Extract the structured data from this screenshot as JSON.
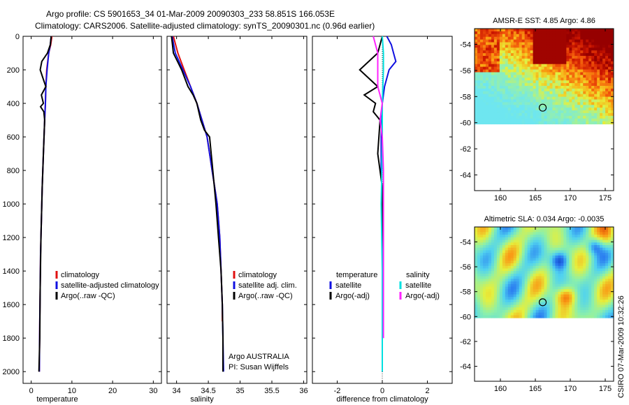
{
  "title_line1": "Argo profile: CS 5901653_34 01-Mar-2009 20090303_233 58.851S 166.053E",
  "title_line2": "Climatology: CARS2006. Satellite-adjusted climatology: synTS_20090301.nc (0.96d earlier)",
  "side_stamp": "CSIRO 07-Mar-2009 10:32:26",
  "colors": {
    "climatology": "#e01010",
    "satellite": "#1010e0",
    "argo": "#000000",
    "cyan": "#00e0e0",
    "magenta": "#ff22ff"
  },
  "chart_data": [
    {
      "type": "line",
      "id": "temperature",
      "xlabel": "temperature",
      "ylabel": "",
      "xlim": [
        -2,
        32
      ],
      "ylim": [
        2070,
        0
      ],
      "xticks": [
        0,
        10,
        20,
        30
      ],
      "yticks": [
        0,
        200,
        400,
        600,
        800,
        1000,
        1200,
        1400,
        1600,
        1800,
        2000
      ],
      "legend": {
        "placement": "lower-right",
        "entries": [
          "climatology",
          "satellite-adjusted climatology",
          "Argo(..raw -QC)"
        ]
      },
      "series": [
        {
          "name": "climatology",
          "color": "#e01010",
          "x": [
            5.1,
            4.8,
            4.3,
            3.8,
            3.6,
            3.5,
            3.3,
            3.0,
            2.7,
            2.5,
            2.3,
            2.2,
            2.1,
            2.0
          ],
          "y": [
            0,
            50,
            100,
            200,
            300,
            400,
            500,
            700,
            900,
            1100,
            1300,
            1500,
            1700,
            2000
          ]
        },
        {
          "name": "satellite-adjusted climatology",
          "color": "#1010e0",
          "x": [
            4.9,
            4.7,
            4.3,
            3.9,
            3.6,
            3.5,
            3.3,
            3.0,
            2.7,
            2.5,
            2.3,
            2.2,
            2.1,
            2.0
          ],
          "y": [
            0,
            50,
            100,
            200,
            300,
            400,
            500,
            700,
            900,
            1100,
            1300,
            1500,
            1700,
            2000
          ]
        },
        {
          "name": "Argo(..raw -QC)",
          "color": "#000000",
          "x": [
            4.9,
            4.7,
            4.0,
            2.6,
            2.2,
            2.9,
            3.6,
            2.5,
            3.0,
            2.3,
            3.1,
            3.3,
            3.0,
            2.7,
            2.4,
            2.2,
            2.1,
            1.9
          ],
          "y": [
            0,
            50,
            100,
            150,
            200,
            250,
            300,
            350,
            400,
            420,
            450,
            500,
            700,
            900,
            1200,
            1500,
            1800,
            2000
          ]
        }
      ]
    },
    {
      "type": "line",
      "id": "salinity",
      "xlabel": "salinity",
      "ylabel": "",
      "xlim": [
        33.85,
        36.05
      ],
      "ylim": [
        2070,
        0
      ],
      "xticks": [
        34,
        34.5,
        35,
        35.5,
        36
      ],
      "legend": {
        "placement": "lower-right",
        "entries": [
          "climatology",
          "satellite adj. clim.",
          "Argo(..raw -QC)"
        ]
      },
      "annotations": [
        "Argo AUSTRALIA",
        "PI: Susan Wijffels"
      ],
      "series": [
        {
          "name": "climatology",
          "color": "#e01010",
          "x": [
            33.95,
            34.02,
            34.12,
            34.22,
            34.32,
            34.4,
            34.48,
            34.56,
            34.6,
            34.64,
            34.68,
            34.7,
            34.72,
            34.72
          ],
          "y": [
            0,
            100,
            200,
            300,
            400,
            500,
            600,
            800,
            900,
            1000,
            1200,
            1400,
            1600,
            1700
          ]
        },
        {
          "name": "satellite adj. clim.",
          "color": "#1010e0",
          "x": [
            33.93,
            33.98,
            34.1,
            34.22,
            34.32,
            34.4,
            34.48,
            34.56,
            34.6,
            34.64,
            34.68,
            34.7,
            34.72,
            34.73,
            34.74
          ],
          "y": [
            0,
            100,
            200,
            300,
            400,
            500,
            600,
            800,
            900,
            1000,
            1200,
            1400,
            1600,
            1800,
            2000
          ]
        },
        {
          "name": "Argo(..raw -QC)",
          "color": "#000000",
          "x": [
            33.92,
            33.95,
            34.08,
            34.18,
            34.26,
            34.32,
            34.38,
            34.44,
            34.52,
            34.57,
            34.62,
            34.66,
            34.7,
            34.72,
            34.73,
            34.73
          ],
          "y": [
            0,
            100,
            200,
            300,
            350,
            400,
            500,
            560,
            600,
            800,
            1000,
            1200,
            1400,
            1600,
            1800,
            2000
          ]
        }
      ]
    },
    {
      "type": "line",
      "id": "difference",
      "xlabel": "difference from climatology",
      "ylabel": "",
      "xlim": [
        -3.1,
        3.1
      ],
      "ylim": [
        2070,
        0
      ],
      "xticks": [
        -2,
        0,
        2
      ],
      "legend": {
        "placement": "lower-right",
        "headers": [
          "temperature",
          "salinity"
        ],
        "entries": [
          "satellite",
          "Argo(-adj)",
          "satellite",
          "Argo(-adj)"
        ]
      },
      "series": [
        {
          "name": "temperature satellite",
          "color": "#1010e0",
          "x": [
            0.2,
            0.4,
            0.5,
            0.6,
            0.3,
            0.1,
            0.0,
            -0.05,
            -0.05,
            0.0,
            0.0,
            0.0,
            0.0
          ],
          "y": [
            0,
            50,
            100,
            150,
            200,
            300,
            400,
            600,
            800,
            1000,
            1400,
            1800,
            2000
          ]
        },
        {
          "name": "temperature Argo(-adj)",
          "color": "#000000",
          "x": [
            0.0,
            -0.2,
            -0.6,
            -1.0,
            -0.6,
            -0.2,
            -0.8,
            -0.3,
            -0.4,
            -0.1,
            -0.2,
            0.0,
            0.0,
            0.0
          ],
          "y": [
            0,
            100,
            150,
            200,
            250,
            300,
            350,
            400,
            450,
            500,
            700,
            900,
            1400,
            2000
          ]
        },
        {
          "name": "salinity satellite",
          "color": "#00e0e0",
          "x": [
            0.0,
            0.05,
            0.05,
            0.0,
            0.0,
            -0.02,
            -0.05,
            0.0,
            0.0,
            0.0
          ],
          "y": [
            0,
            100,
            200,
            400,
            600,
            800,
            1000,
            1400,
            1800,
            2000
          ]
        },
        {
          "name": "salinity Argo(-adj)",
          "color": "#ff22ff",
          "x": [
            -0.4,
            -0.2,
            -0.2,
            -0.2,
            0.0,
            -0.1,
            0.0,
            0.05,
            0.05,
            0.05,
            0.05
          ],
          "y": [
            0,
            100,
            200,
            300,
            400,
            500,
            600,
            800,
            1000,
            1400,
            1800
          ]
        }
      ]
    },
    {
      "type": "heatmap",
      "id": "sst_map",
      "title": "AMSR-E SST: 4.85 Argo: 4.86",
      "xlim": [
        156.3,
        176.2
      ],
      "ylim": [
        -65.2,
        -52.8
      ],
      "xticks": [
        160,
        165,
        170,
        175
      ],
      "yticks": [
        -54,
        -56,
        -58,
        -60,
        -62,
        -64
      ],
      "data_extent_lat": [
        -60.1,
        -52.8
      ],
      "marker": {
        "lon": 166.053,
        "lat": -58.851
      }
    },
    {
      "type": "heatmap",
      "id": "sla_map",
      "title": "Altimetric SLA: 0.034 Argo: -0.0035",
      "xlim": [
        156.3,
        176.2
      ],
      "ylim": [
        -65.2,
        -52.8
      ],
      "xticks": [
        160,
        165,
        170,
        175
      ],
      "yticks": [
        -54,
        -56,
        -58,
        -60,
        -62,
        -64
      ],
      "data_extent_lat": [
        -60.1,
        -52.8
      ],
      "marker": {
        "lon": 166.053,
        "lat": -58.851
      }
    }
  ]
}
